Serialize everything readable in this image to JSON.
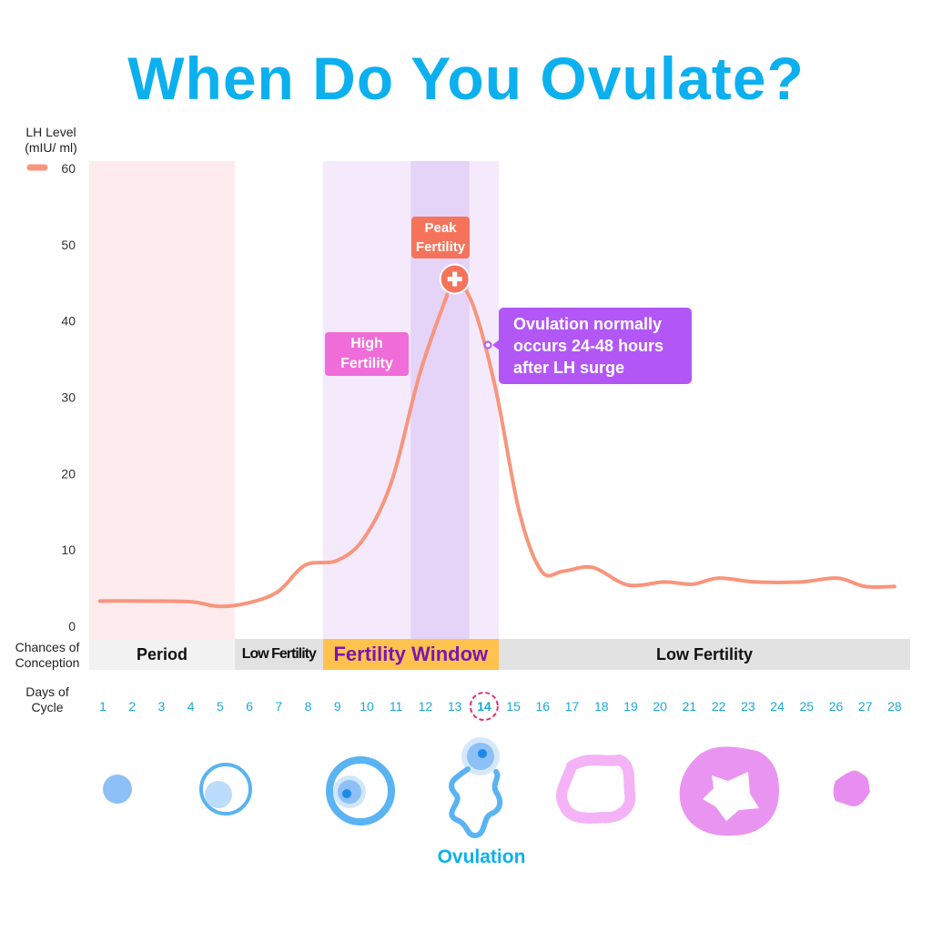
{
  "title": "When Do You Ovulate?",
  "colors": {
    "title": "#0cb0ef",
    "lh_line": "#f8957c",
    "period_band": "#fdebee",
    "fertile_band": "#f4eafc",
    "peak_band": "#e6d3f8",
    "fertility_window": "#ffc24f",
    "fertility_window_text": "#7a16b0",
    "low_fertility": "#e2e2e2",
    "period_cell": "#f2f2f2",
    "day_text": "#1aa9d8",
    "day14": "#a24fd6",
    "day14_ring": "#e0306a",
    "follicle_blue": "#5ab3f2",
    "corpus_pink": "#ea94f2"
  },
  "chart_data": {
    "type": "line",
    "title": "",
    "ylabel": "LH Level\n(mIU/ ml)",
    "ylabel_lines": [
      "LH Level",
      "(mIU/ ml)"
    ],
    "xlabel_lines": [
      "Days of",
      "Cycle"
    ],
    "ylim": [
      0,
      60
    ],
    "yticks": [
      0,
      10,
      20,
      30,
      40,
      50,
      60
    ],
    "xticks": [
      1,
      2,
      3,
      4,
      5,
      6,
      7,
      8,
      9,
      10,
      11,
      12,
      13,
      14,
      15,
      16,
      17,
      18,
      19,
      20,
      21,
      22,
      23,
      24,
      25,
      26,
      27,
      28
    ],
    "highlighted_day": 14,
    "grid": false,
    "legend": "top-left, line swatch beside 60 tick",
    "series": [
      {
        "x": [
          0.9,
          2.46,
          4.0,
          4.95,
          5.9,
          6.96,
          7.9,
          8.98,
          9.9,
          10.85,
          11.8,
          12.7,
          13.0,
          13.63,
          14.4,
          15.2,
          15.96,
          16.7,
          17.7,
          18.9,
          20.15,
          21.1,
          22.0,
          23.25,
          24.8,
          26.05,
          27.0,
          28.0
        ],
        "y": [
          3.3,
          3.3,
          3.2,
          2.6,
          3.0,
          4.5,
          8.0,
          8.6,
          11.5,
          19,
          33,
          43,
          45.5,
          42,
          31,
          15,
          7.2,
          7.2,
          7.7,
          5.4,
          5.8,
          5.5,
          6.3,
          5.8,
          5.8,
          6.3,
          5.2,
          5.2
        ]
      }
    ],
    "shaded_regions": [
      {
        "from": 0.5,
        "to": 5.5,
        "color": "#fdebee"
      },
      {
        "from": 8.5,
        "to": 14.5,
        "color": "#f4eafc"
      },
      {
        "from": 11.5,
        "to": 13.5,
        "color": "#e6d3f8"
      }
    ],
    "annotations": {
      "peak": {
        "lines": [
          "Peak",
          "Fertility"
        ],
        "day": 13,
        "value": 45.5
      },
      "high": {
        "lines": [
          "High",
          "Fertility"
        ]
      },
      "ovulation_note": {
        "lines": [
          "Ovulation normally",
          "occurs 24-48 hours",
          "after LH surge"
        ]
      }
    }
  },
  "conception": {
    "label_lines": [
      "Chances of",
      "Conception"
    ],
    "segments": [
      {
        "label": "Period",
        "from": 0.5,
        "to": 5.5
      },
      {
        "label": "Low Fertility",
        "from": 5.5,
        "to": 8.5
      },
      {
        "label": "Fertility Window",
        "from": 8.5,
        "to": 14.5
      },
      {
        "label": "Low Fertility",
        "from": 14.5,
        "to": 29
      }
    ]
  },
  "ovulation_label": "Ovulation"
}
